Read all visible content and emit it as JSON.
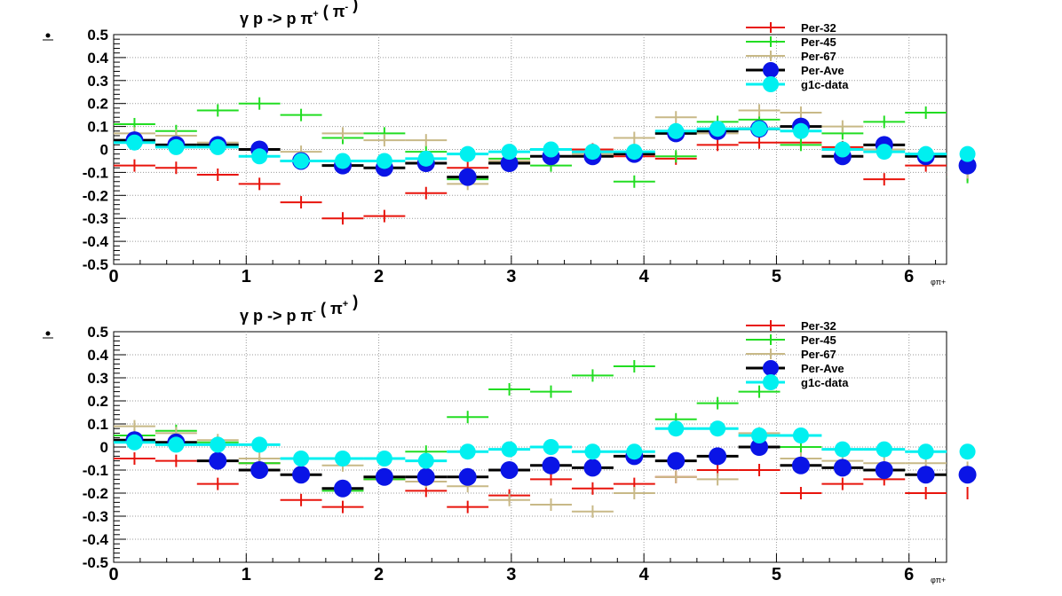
{
  "colors": {
    "Per-32": "#e8140c",
    "Per-45": "#22dd22",
    "Per-67": "#c8b987",
    "Per-Ave": "#000000",
    "g1c-data": "#00f0f0",
    "ave_marker": "#0a14e6",
    "grid": "#9a9a9a"
  },
  "chart_data": [
    {
      "type": "scatter",
      "title": "γ p -> p π+ ( π- )",
      "xlabel": "φπ+",
      "xlim": [
        0,
        6.2832
      ],
      "ylim": [
        -0.5,
        0.5
      ],
      "x_ticks": [
        "0",
        "1",
        "2",
        "3",
        "4",
        "5",
        "6"
      ],
      "y_ticks": [
        "-0.5",
        "-0.4",
        "-0.3",
        "-0.2",
        "-0.1",
        "0",
        "0.1",
        "0.2",
        "0.3",
        "0.4",
        "0.5"
      ],
      "grid": true,
      "legend_position": "top-right",
      "bin_width": 0.3142,
      "series": [
        {
          "name": "Per-32",
          "values": [
            -0.07,
            -0.08,
            -0.11,
            -0.15,
            -0.23,
            -0.3,
            -0.29,
            -0.19,
            -0.08,
            -0.06,
            0.0,
            0.0,
            -0.03,
            -0.04,
            0.02,
            0.03,
            0.03,
            0.01,
            -0.13,
            -0.07,
            -0.11
          ]
        },
        {
          "name": "Per-45",
          "values": [
            0.11,
            0.08,
            0.17,
            0.2,
            0.15,
            0.05,
            0.07,
            -0.01,
            -0.13,
            -0.04,
            -0.07,
            -0.03,
            -0.14,
            -0.03,
            0.12,
            0.13,
            0.02,
            0.07,
            0.12,
            0.16,
            -0.12
          ]
        },
        {
          "name": "Per-67",
          "values": [
            0.07,
            0.06,
            0.03,
            0.0,
            -0.01,
            0.07,
            0.04,
            0.04,
            -0.15,
            -0.05,
            0.0,
            -0.02,
            0.05,
            0.14,
            0.07,
            0.17,
            0.16,
            0.1,
            0.0,
            -0.03,
            -0.1
          ]
        },
        {
          "name": "Per-Ave",
          "values": [
            0.04,
            0.02,
            0.02,
            0.0,
            -0.05,
            -0.07,
            -0.08,
            -0.06,
            -0.12,
            -0.06,
            -0.03,
            -0.03,
            -0.02,
            0.07,
            0.08,
            0.09,
            0.1,
            -0.03,
            0.02,
            -0.03,
            -0.07
          ]
        },
        {
          "name": "g1c-data",
          "values": [
            0.03,
            0.01,
            0.01,
            -0.03,
            -0.05,
            -0.05,
            -0.05,
            -0.04,
            -0.02,
            -0.01,
            0.0,
            -0.01,
            -0.01,
            0.08,
            0.09,
            0.09,
            0.08,
            0.0,
            -0.01,
            -0.02,
            -0.02
          ]
        }
      ]
    },
    {
      "type": "scatter",
      "title": "γ p -> p π- ( π+ )",
      "xlabel": "φπ+",
      "xlim": [
        0,
        6.2832
      ],
      "ylim": [
        -0.5,
        0.5
      ],
      "x_ticks": [
        "0",
        "1",
        "2",
        "3",
        "4",
        "5",
        "6"
      ],
      "y_ticks": [
        "-0.5",
        "-0.4",
        "-0.3",
        "-0.2",
        "-0.1",
        "0",
        "0.1",
        "0.2",
        "0.3",
        "0.4",
        "0.5"
      ],
      "grid": true,
      "legend_position": "top-right",
      "bin_width": 0.3142,
      "series": [
        {
          "name": "Per-32",
          "values": [
            -0.05,
            -0.06,
            -0.16,
            -0.07,
            -0.23,
            -0.26,
            -0.14,
            -0.19,
            -0.26,
            -0.21,
            -0.14,
            -0.18,
            -0.16,
            -0.13,
            -0.1,
            -0.1,
            -0.2,
            -0.16,
            -0.14,
            -0.2,
            -0.2
          ]
        },
        {
          "name": "Per-45",
          "values": [
            0.05,
            0.07,
            0.02,
            -0.07,
            -0.12,
            -0.19,
            -0.14,
            -0.02,
            0.13,
            0.25,
            0.24,
            0.31,
            0.35,
            0.12,
            0.19,
            0.24,
            0.0,
            -0.01,
            -0.1,
            -0.12,
            -0.12
          ]
        },
        {
          "name": "Per-67",
          "values": [
            0.09,
            0.06,
            0.03,
            -0.05,
            -0.12,
            -0.08,
            -0.13,
            -0.15,
            -0.17,
            -0.23,
            -0.25,
            -0.28,
            -0.2,
            -0.13,
            -0.14,
            0.06,
            -0.05,
            -0.06,
            -0.07,
            -0.07,
            -0.09
          ]
        },
        {
          "name": "Per-Ave",
          "values": [
            0.03,
            0.02,
            -0.06,
            -0.1,
            -0.12,
            -0.18,
            -0.13,
            -0.13,
            -0.13,
            -0.1,
            -0.08,
            -0.09,
            -0.04,
            -0.06,
            -0.04,
            0.0,
            -0.08,
            -0.09,
            -0.1,
            -0.12,
            -0.12
          ]
        },
        {
          "name": "g1c-data",
          "values": [
            0.02,
            0.01,
            0.01,
            0.01,
            -0.05,
            -0.05,
            -0.05,
            -0.06,
            -0.02,
            -0.01,
            0.0,
            -0.02,
            -0.02,
            0.08,
            0.08,
            0.05,
            0.05,
            -0.01,
            -0.01,
            -0.02,
            -0.02
          ]
        }
      ]
    }
  ]
}
